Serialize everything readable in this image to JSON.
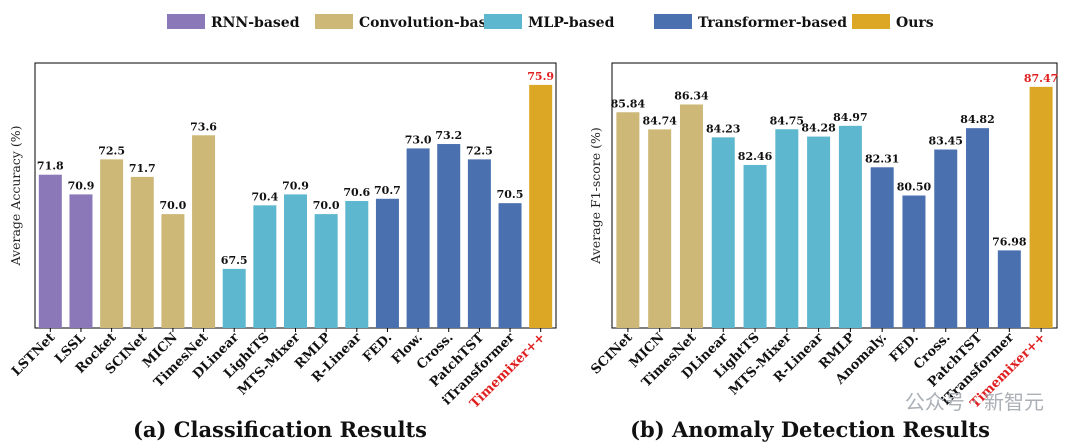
{
  "legend": [
    {
      "name": "RNN-based",
      "color": "#8B78B8"
    },
    {
      "name": "Convolution-based",
      "color": "#CDB878"
    },
    {
      "name": "MLP-based",
      "color": "#5DB7CF"
    },
    {
      "name": "Transformer-based",
      "color": "#4A70B0"
    },
    {
      "name": "Ours",
      "color": "#DDA726"
    }
  ],
  "highlight_color": "#E02020",
  "watermark": "公众号 · 新智元",
  "chart_data": [
    {
      "type": "bar",
      "title": "(a) Classification Results",
      "ylabel": "Average Accuracy (%)",
      "xlabel": "",
      "ylim": [
        64.8,
        76.9
      ],
      "grid": false,
      "legend_position": "top",
      "categories": [
        "LSTNet",
        "LSSL",
        "Rocket",
        "SCINet",
        "MICN",
        "TimesNet",
        "DLinear",
        "LightTS",
        "MTS-Mixer",
        "RMLP",
        "R-Linear",
        "FED.",
        "Flow.",
        "Cross.",
        "PatchTST",
        "iTransformer",
        "Timemixer++"
      ],
      "values": [
        71.8,
        70.9,
        72.5,
        71.7,
        70.0,
        73.6,
        67.5,
        70.4,
        70.9,
        70.0,
        70.6,
        70.7,
        73.0,
        73.2,
        72.5,
        70.5,
        75.9
      ],
      "value_labels": [
        "71.8",
        "70.9",
        "72.5",
        "71.7",
        "70.0",
        "73.6",
        "67.5",
        "70.4",
        "70.9",
        "70.0",
        "70.6",
        "70.7",
        "73.0",
        "73.2",
        "72.5",
        "70.5",
        "75.9"
      ],
      "groups": [
        "RNN-based",
        "RNN-based",
        "Convolution-based",
        "Convolution-based",
        "Convolution-based",
        "Convolution-based",
        "MLP-based",
        "MLP-based",
        "MLP-based",
        "MLP-based",
        "MLP-based",
        "Transformer-based",
        "Transformer-based",
        "Transformer-based",
        "Transformer-based",
        "Transformer-based",
        "Ours"
      ],
      "highlight": "Timemixer++"
    },
    {
      "type": "bar",
      "title": "(b) Anomaly Detection Results",
      "ylabel": "Average F1-score (%)",
      "xlabel": "",
      "ylim": [
        72.0,
        89.0
      ],
      "grid": false,
      "legend_position": "top",
      "categories": [
        "SCINet",
        "MICN",
        "TimesNet",
        "DLinear",
        "LightTS",
        "MTS-Mixer",
        "R-Linear",
        "RMLP",
        "Anomaly.",
        "FED.",
        "Cross.",
        "PatchTST",
        "iTransformer",
        "Timemixer++"
      ],
      "values": [
        85.84,
        84.74,
        86.34,
        84.23,
        82.46,
        84.75,
        84.28,
        84.97,
        82.31,
        80.5,
        83.45,
        84.82,
        76.98,
        87.47
      ],
      "value_labels": [
        "85.84",
        "84.74",
        "86.34",
        "84.23",
        "82.46",
        "84.75",
        "84.28",
        "84.97",
        "82.31",
        "80.50",
        "83.45",
        "84.82",
        "76.98",
        "87.47"
      ],
      "groups": [
        "Convolution-based",
        "Convolution-based",
        "Convolution-based",
        "MLP-based",
        "MLP-based",
        "MLP-based",
        "MLP-based",
        "MLP-based",
        "Transformer-based",
        "Transformer-based",
        "Transformer-based",
        "Transformer-based",
        "Transformer-based",
        "Ours"
      ],
      "highlight": "Timemixer++"
    }
  ]
}
